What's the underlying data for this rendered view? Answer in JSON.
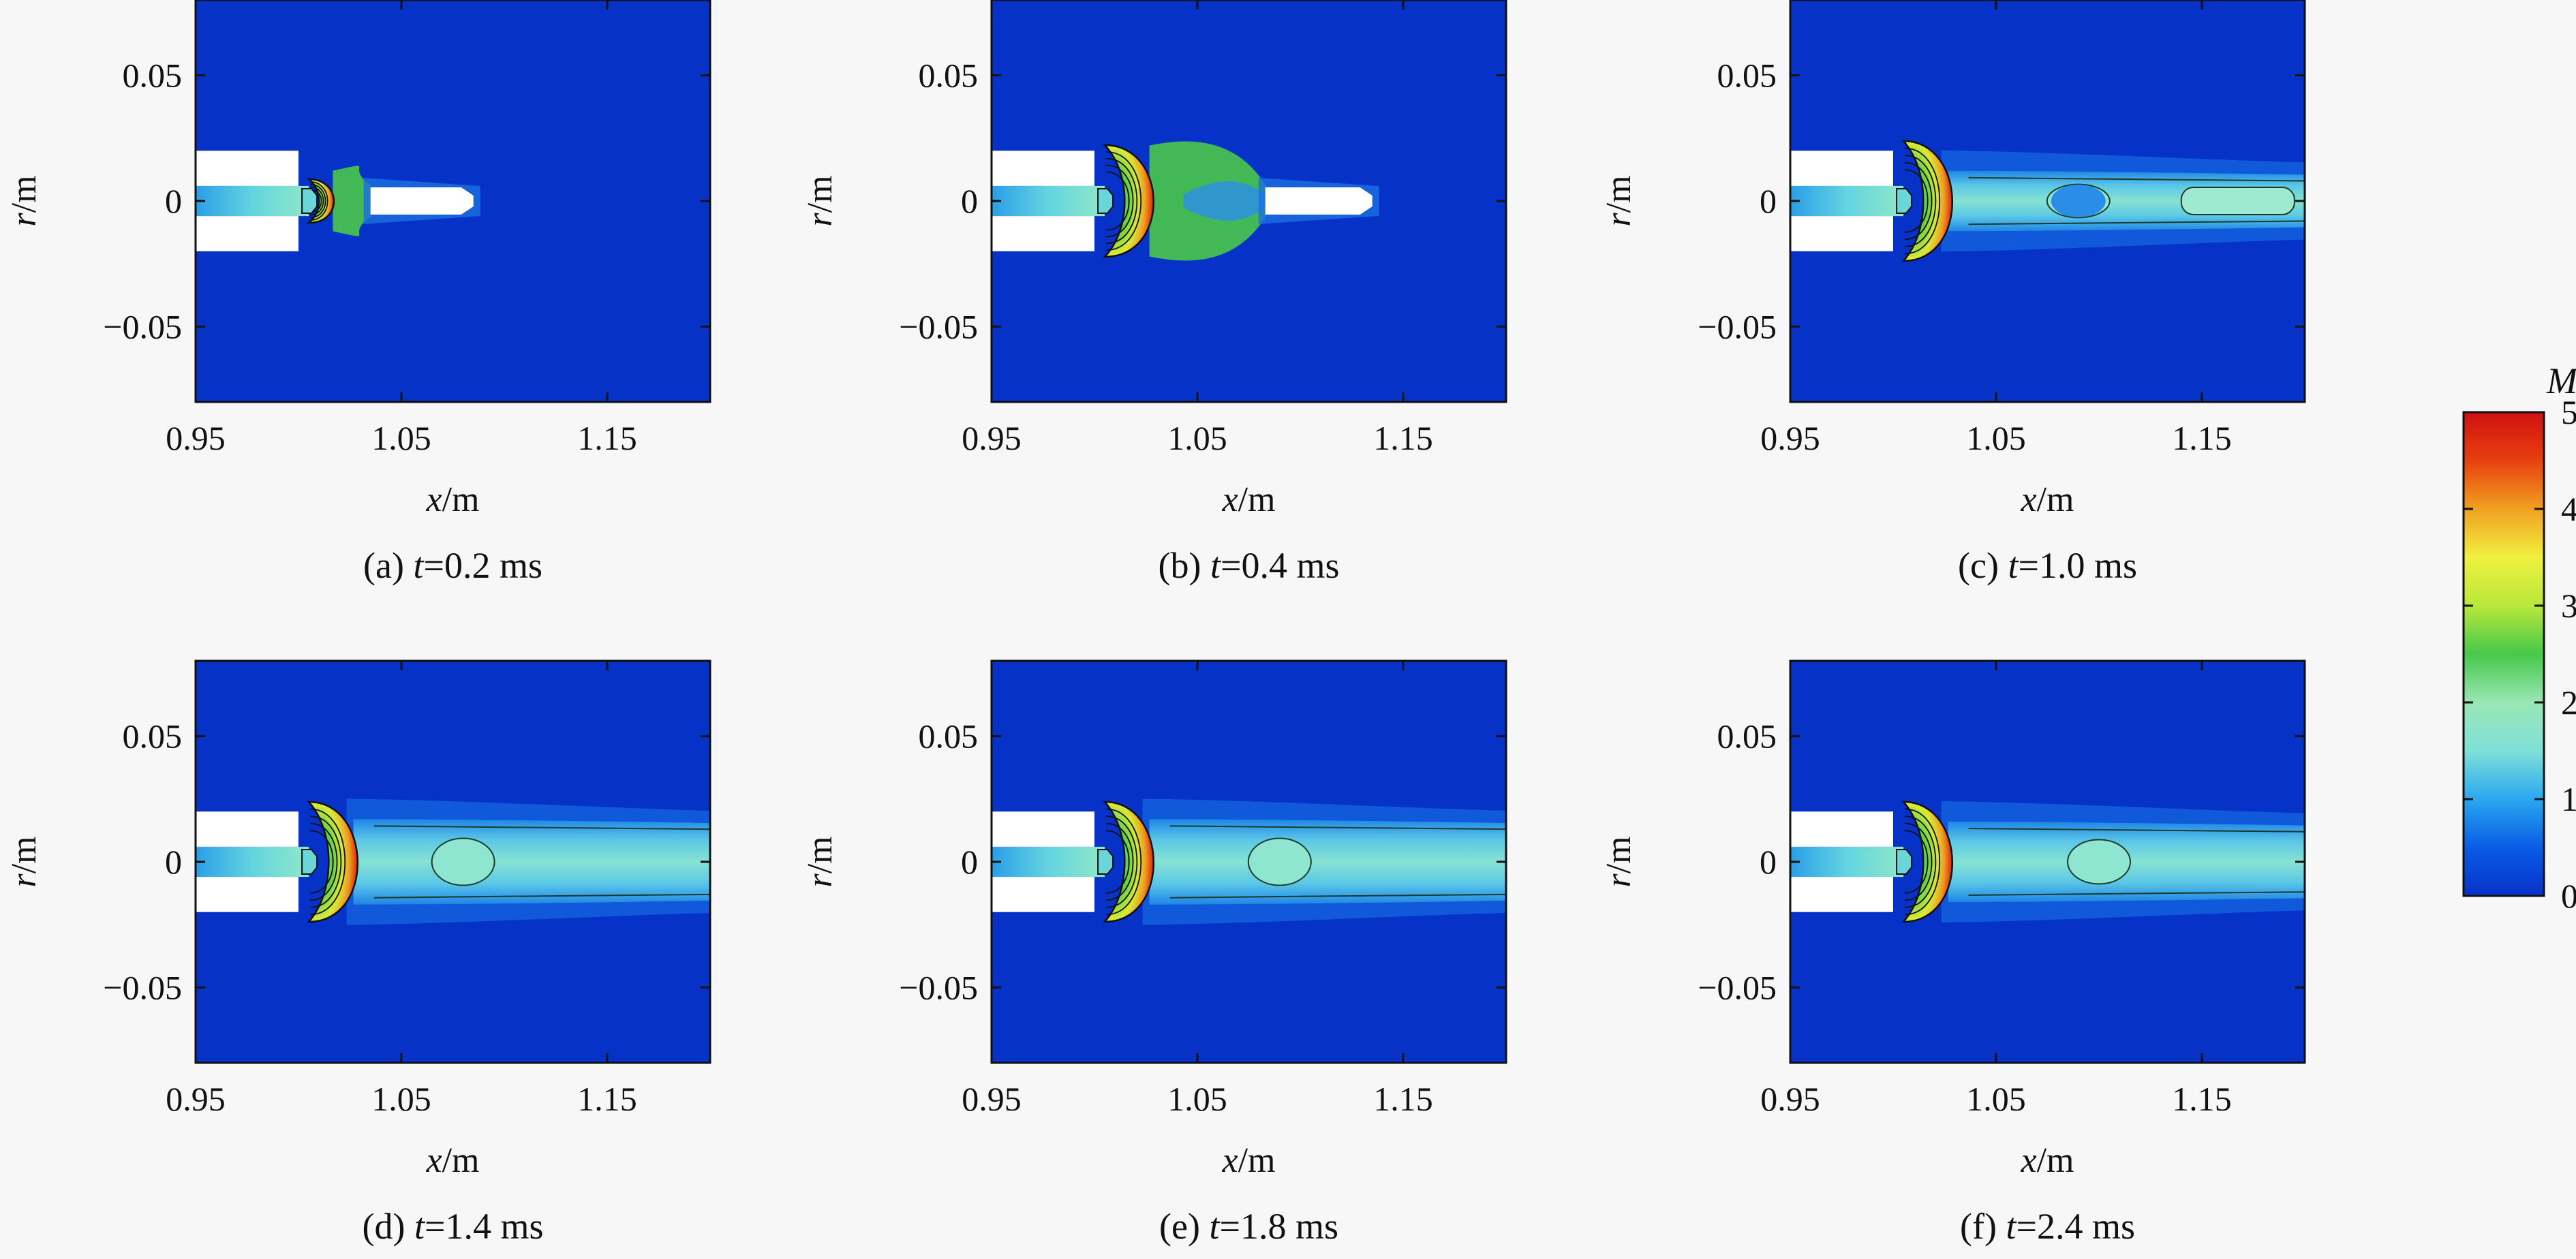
{
  "chart_data": {
    "type": "heatmap",
    "xlim": [
      0.95,
      1.2
    ],
    "ylim": [
      -0.08,
      0.08
    ],
    "x_ticks": [
      "0.95",
      "1.05",
      "1.15"
    ],
    "x_tick_values": [
      0.95,
      1.05,
      1.15
    ],
    "y_ticks": [
      "0.05",
      "0",
      "−0.05"
    ],
    "y_tick_values": [
      0.05,
      0,
      -0.05
    ],
    "xlabel": {
      "italic": "x",
      "unit": "/m"
    },
    "ylabel": {
      "italic": "r",
      "unit": "/m"
    },
    "grid": false,
    "panels": [
      {
        "caption": {
          "prefix": "(a) ",
          "var": "t",
          "value": "=0.2 ms"
        },
        "time_ms": 0.2,
        "shock_x": 1.02,
        "disk_x": 1.005,
        "front_x": 1.085,
        "plume_width": 0.008,
        "mode": "projectile",
        "proj_start": 1.035,
        "proj_end": 1.085,
        "bubble_x": 1.02
      },
      {
        "caption": {
          "prefix": "(b) ",
          "var": "t",
          "value": "=0.4 ms"
        },
        "time_ms": 0.4,
        "shock_x": 1.03,
        "disk_x": 1.005,
        "front_x": 1.135,
        "plume_width": 0.018,
        "mode": "projectile",
        "proj_start": 1.083,
        "proj_end": 1.135,
        "bubble_x": 1.045
      },
      {
        "caption": {
          "prefix": "(c) ",
          "var": "t",
          "value": "=1.0 ms"
        },
        "time_ms": 1.0,
        "shock_x": 1.03,
        "disk_x": 1.005,
        "front_x": 1.2,
        "plume_width": 0.012,
        "mode": "plume",
        "bubble_x": 1.09
      },
      {
        "caption": {
          "prefix": "(d) ",
          "var": "t",
          "value": "=1.4 ms"
        },
        "time_ms": 1.4,
        "shock_x": 1.03,
        "disk_x": 1.005,
        "front_x": 1.2,
        "plume_width": 0.017,
        "mode": "plume",
        "bubble_x": 1.08
      },
      {
        "caption": {
          "prefix": "(e) ",
          "var": "t",
          "value": "=1.8 ms"
        },
        "time_ms": 1.8,
        "shock_x": 1.03,
        "disk_x": 1.005,
        "front_x": 1.2,
        "plume_width": 0.017,
        "mode": "plume",
        "bubble_x": 1.09
      },
      {
        "caption": {
          "prefix": "(f) ",
          "var": "t",
          "value": "=2.4 ms"
        },
        "time_ms": 2.4,
        "shock_x": 1.03,
        "disk_x": 1.005,
        "front_x": 1.2,
        "plume_width": 0.016,
        "mode": "plume",
        "bubble_x": 1.1
      }
    ],
    "nozzle": {
      "x_start": 0.95,
      "x_end": 1.0,
      "r_outer": 0.02,
      "r_inner": 0.006
    },
    "colorbar": {
      "title": "Ma",
      "min": 0,
      "max": 5,
      "ticks": [
        "0",
        "1",
        "2",
        "3",
        "4",
        "5"
      ],
      "tick_values": [
        0,
        1,
        2,
        3,
        4,
        5
      ],
      "colors": [
        "#0632c8",
        "#0a5ce6",
        "#2aa8f0",
        "#7fe0d8",
        "#9ae6b4",
        "#46c84a",
        "#b8e83a",
        "#f0f040",
        "#f0a020",
        "#e84010",
        "#d01010"
      ]
    }
  }
}
